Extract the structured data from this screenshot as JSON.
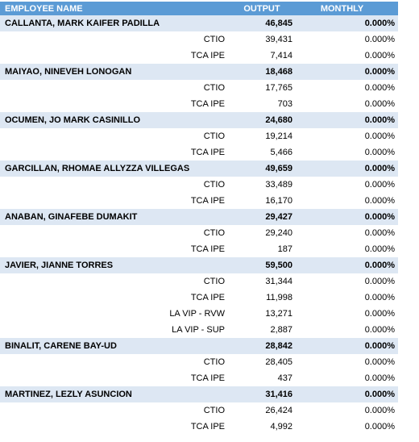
{
  "header": {
    "name_label": "EMPLOYEE NAME",
    "output_label": "OUTPUT",
    "monthly_label": "MONTHLY"
  },
  "colors": {
    "header_bg": "#5b9bd5",
    "employee_row_bg": "#dde7f3"
  },
  "rows": [
    {
      "type": "emp",
      "name": "CALLANTA, MARK KAIFER PADILLA",
      "output": "46,845",
      "monthly": "0.000%"
    },
    {
      "type": "sub",
      "name": "CTIO",
      "output": "39,431",
      "monthly": "0.000%"
    },
    {
      "type": "sub",
      "name": "TCA IPE",
      "output": "7,414",
      "monthly": "0.000%"
    },
    {
      "type": "emp",
      "name": "MAIYAO, NINEVEH LONOGAN",
      "output": "18,468",
      "monthly": "0.000%"
    },
    {
      "type": "sub",
      "name": "CTIO",
      "output": "17,765",
      "monthly": "0.000%"
    },
    {
      "type": "sub",
      "name": "TCA IPE",
      "output": "703",
      "monthly": "0.000%"
    },
    {
      "type": "emp",
      "name": "OCUMEN, JO MARK CASINILLO",
      "output": "24,680",
      "monthly": "0.000%"
    },
    {
      "type": "sub",
      "name": "CTIO",
      "output": "19,214",
      "monthly": "0.000%"
    },
    {
      "type": "sub",
      "name": "TCA IPE",
      "output": "5,466",
      "monthly": "0.000%"
    },
    {
      "type": "emp",
      "name": "GARCILLAN, RHOMAE ALLYZZA VILLEGAS",
      "output": "49,659",
      "monthly": "0.000%"
    },
    {
      "type": "sub",
      "name": "CTIO",
      "output": "33,489",
      "monthly": "0.000%"
    },
    {
      "type": "sub",
      "name": "TCA IPE",
      "output": "16,170",
      "monthly": "0.000%"
    },
    {
      "type": "emp",
      "name": "ANABAN, GINAFEBE DUMAKIT",
      "output": "29,427",
      "monthly": "0.000%"
    },
    {
      "type": "sub",
      "name": "CTIO",
      "output": "29,240",
      "monthly": "0.000%"
    },
    {
      "type": "sub",
      "name": "TCA IPE",
      "output": "187",
      "monthly": "0.000%"
    },
    {
      "type": "emp",
      "name": "JAVIER, JIANNE TORRES",
      "output": "59,500",
      "monthly": "0.000%"
    },
    {
      "type": "sub",
      "name": "CTIO",
      "output": "31,344",
      "monthly": "0.000%"
    },
    {
      "type": "sub",
      "name": "TCA IPE",
      "output": "11,998",
      "monthly": "0.000%"
    },
    {
      "type": "sub",
      "name": "LA VIP - RVW",
      "output": "13,271",
      "monthly": "0.000%"
    },
    {
      "type": "sub",
      "name": "LA VIP - SUP",
      "output": "2,887",
      "monthly": "0.000%"
    },
    {
      "type": "emp",
      "name": "BINALIT, CARENE BAY-UD",
      "output": "28,842",
      "monthly": "0.000%"
    },
    {
      "type": "sub",
      "name": "CTIO",
      "output": "28,405",
      "monthly": "0.000%"
    },
    {
      "type": "sub",
      "name": "TCA IPE",
      "output": "437",
      "monthly": "0.000%"
    },
    {
      "type": "emp",
      "name": "MARTINEZ, LEZLY ASUNCION",
      "output": "31,416",
      "monthly": "0.000%"
    },
    {
      "type": "sub",
      "name": "CTIO",
      "output": "26,424",
      "monthly": "0.000%"
    },
    {
      "type": "sub",
      "name": "TCA IPE",
      "output": "4,992",
      "monthly": "0.000%"
    }
  ]
}
